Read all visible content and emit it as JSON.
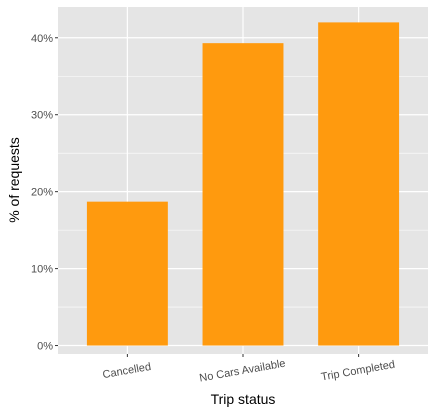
{
  "chart_data": {
    "type": "bar",
    "categories": [
      "Cancelled",
      "No Cars Available",
      "Trip Completed"
    ],
    "values": [
      18.7,
      39.3,
      42.0
    ],
    "xlabel": "Trip status",
    "ylabel": "% of requests",
    "ylim": [
      -1.1,
      44
    ],
    "yticks": [
      0,
      10,
      20,
      30,
      40
    ],
    "ytick_labels": [
      "0%",
      "10%",
      "20%",
      "30%",
      "40%"
    ],
    "grid": true,
    "bar_color": "#ff9a0e",
    "panel_color": "#e5e5e5",
    "grid_color": "#ffffff"
  }
}
